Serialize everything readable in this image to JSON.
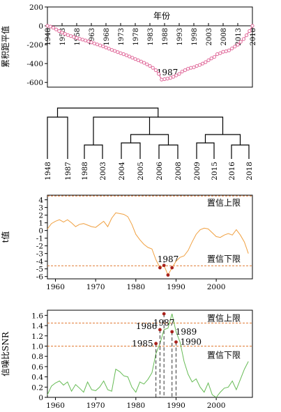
{
  "chart_data": [
    {
      "type": "line",
      "id": "cumulative-anomaly",
      "ylabel": "累积距平值",
      "xlabel": "年份",
      "ylim": [
        -650,
        200
      ],
      "yticks": [
        200,
        0,
        -200,
        -400,
        -600
      ],
      "xticks": [
        "1948",
        "1953",
        "1958",
        "1963",
        "1968",
        "1973",
        "1978",
        "1983",
        "1988",
        "1993",
        "1998",
        "2003",
        "2008",
        "2013",
        "2018"
      ],
      "xlim": [
        1948,
        2018
      ],
      "annotation": "1987",
      "series": [
        {
          "color": "#e0699a",
          "marker": "circle",
          "x": [
            1948,
            1949,
            1950,
            1951,
            1952,
            1953,
            1954,
            1955,
            1956,
            1957,
            1958,
            1959,
            1960,
            1961,
            1962,
            1963,
            1964,
            1965,
            1966,
            1967,
            1968,
            1969,
            1970,
            1971,
            1972,
            1973,
            1974,
            1975,
            1976,
            1977,
            1978,
            1979,
            1980,
            1981,
            1982,
            1983,
            1984,
            1985,
            1986,
            1987,
            1988,
            1989,
            1990,
            1991,
            1992,
            1993,
            1994,
            1995,
            1996,
            1997,
            1998,
            1999,
            2000,
            2001,
            2002,
            2003,
            2004,
            2005,
            2006,
            2007,
            2008,
            2009,
            2010,
            2011,
            2012,
            2013,
            2014,
            2015,
            2016,
            2017,
            2018
          ],
          "y": [
            0,
            -8,
            -20,
            -38,
            -55,
            -72,
            -85,
            -98,
            -108,
            -118,
            -128,
            -137,
            -146,
            -155,
            -165,
            -175,
            -186,
            -197,
            -207,
            -218,
            -230,
            -242,
            -255,
            -266,
            -278,
            -290,
            -300,
            -312,
            -325,
            -338,
            -352,
            -365,
            -378,
            -392,
            -408,
            -425,
            -445,
            -470,
            -510,
            -570,
            -565,
            -560,
            -552,
            -540,
            -525,
            -510,
            -485,
            -470,
            -455,
            -445,
            -440,
            -425,
            -415,
            -400,
            -385,
            -365,
            -345,
            -330,
            -300,
            -290,
            -275,
            -270,
            -260,
            -240,
            -220,
            -200,
            -170,
            -140,
            -100,
            -55,
            0
          ]
        }
      ]
    },
    {
      "type": "dendrogram",
      "id": "year-clustering",
      "leaves": [
        "1948",
        "1987",
        "1988",
        "2003",
        "2004",
        "2005",
        "2006",
        "2008",
        "2009",
        "2015",
        "2016",
        "2018"
      ]
    },
    {
      "type": "line",
      "id": "t-statistic",
      "ylabel": "t值",
      "xlim": [
        1958,
        2009
      ],
      "ylim": [
        -6.3,
        4.6
      ],
      "yticks": [
        4,
        3,
        2,
        1,
        0,
        -1,
        -2,
        -3,
        -4,
        -5,
        -6
      ],
      "xticks": [
        1960,
        1970,
        1980,
        1990,
        2000
      ],
      "thresholds": [
        {
          "value": 4.5,
          "label": "置信上限"
        },
        {
          "value": -4.6,
          "label": "置信下限"
        }
      ],
      "annotation": "1987",
      "highlight_points": [
        {
          "x": 1986,
          "y": -4.85
        },
        {
          "x": 1987,
          "y": -4.55
        },
        {
          "x": 1988,
          "y": -5.8
        },
        {
          "x": 1989,
          "y": -4.85
        }
      ],
      "series": [
        {
          "color": "#f0a040",
          "x": [
            1958,
            1959,
            1960,
            1961,
            1962,
            1963,
            1964,
            1965,
            1966,
            1967,
            1968,
            1969,
            1970,
            1971,
            1972,
            1973,
            1974,
            1975,
            1976,
            1977,
            1978,
            1979,
            1980,
            1981,
            1982,
            1983,
            1984,
            1985,
            1986,
            1987,
            1988,
            1989,
            1990,
            1991,
            1992,
            1993,
            1994,
            1995,
            1996,
            1997,
            1998,
            1999,
            2000,
            2001,
            2002,
            2003,
            2004,
            2005,
            2006,
            2007,
            2008
          ],
          "y": [
            0.2,
            0.9,
            1.2,
            1.4,
            1.1,
            1.4,
            1.0,
            0.5,
            0.8,
            0.9,
            0.7,
            0.5,
            0.4,
            0.8,
            1.2,
            0.5,
            1.6,
            2.3,
            2.2,
            2.1,
            1.8,
            0.8,
            -0.5,
            -1.2,
            -1.8,
            -2.2,
            -2.4,
            -3.8,
            -4.85,
            -4.55,
            -5.8,
            -4.85,
            -4.0,
            -3.5,
            -3.3,
            -2.6,
            -1.5,
            -0.5,
            0.1,
            0.3,
            0.2,
            -0.3,
            -0.8,
            -0.9,
            -0.6,
            -0.4,
            -0.6,
            0.1,
            -0.6,
            -1.5,
            -3.0
          ]
        }
      ]
    },
    {
      "type": "line",
      "id": "snr",
      "ylabel": "信噪比SNR",
      "xlim": [
        1958,
        2009
      ],
      "ylim": [
        0,
        1.7
      ],
      "yticks": [
        1.6,
        1.4,
        1.2,
        1.0,
        0.8,
        0.6,
        0.4,
        0.2,
        0
      ],
      "xticks": [
        1960,
        1970,
        1980,
        1990,
        2000
      ],
      "thresholds": [
        {
          "value": 1.45,
          "label": "置信上限"
        },
        {
          "value": 1.0,
          "label": "置信下限"
        }
      ],
      "annotations": [
        {
          "x": 1985,
          "y": 1.05,
          "label": "1985"
        },
        {
          "x": 1986,
          "y": 1.32,
          "label": "1986"
        },
        {
          "x": 1987,
          "y": 1.63,
          "label": "1987"
        },
        {
          "x": 1989,
          "y": 1.28,
          "label": "1989"
        },
        {
          "x": 1990,
          "y": 1.08,
          "label": "1990"
        }
      ],
      "series": [
        {
          "color": "#66bb55",
          "x": [
            1958,
            1959,
            1960,
            1961,
            1962,
            1963,
            1964,
            1965,
            1966,
            1967,
            1968,
            1969,
            1970,
            1971,
            1972,
            1973,
            1974,
            1975,
            1976,
            1977,
            1978,
            1979,
            1980,
            1981,
            1982,
            1983,
            1984,
            1985,
            1986,
            1987,
            1988,
            1989,
            1990,
            1991,
            1992,
            1993,
            1994,
            1995,
            1996,
            1997,
            1998,
            1999,
            2000,
            2001,
            2002,
            2003,
            2004,
            2005,
            2006,
            2007,
            2008
          ],
          "y": [
            0.05,
            0.22,
            0.28,
            0.32,
            0.24,
            0.3,
            0.12,
            0.25,
            0.18,
            0.1,
            0.3,
            0.15,
            0.13,
            0.2,
            0.32,
            0.15,
            0.12,
            0.55,
            0.5,
            0.42,
            0.4,
            0.2,
            0.1,
            0.3,
            0.26,
            0.35,
            0.48,
            0.85,
            1.05,
            1.32,
            1.35,
            1.63,
            1.28,
            1.08,
            0.7,
            0.45,
            0.3,
            0.36,
            0.2,
            0.1,
            0.28,
            0.05,
            0.0,
            0.1,
            0.18,
            0.2,
            0.32,
            0.15,
            0.35,
            0.55,
            0.7
          ]
        }
      ]
    }
  ]
}
